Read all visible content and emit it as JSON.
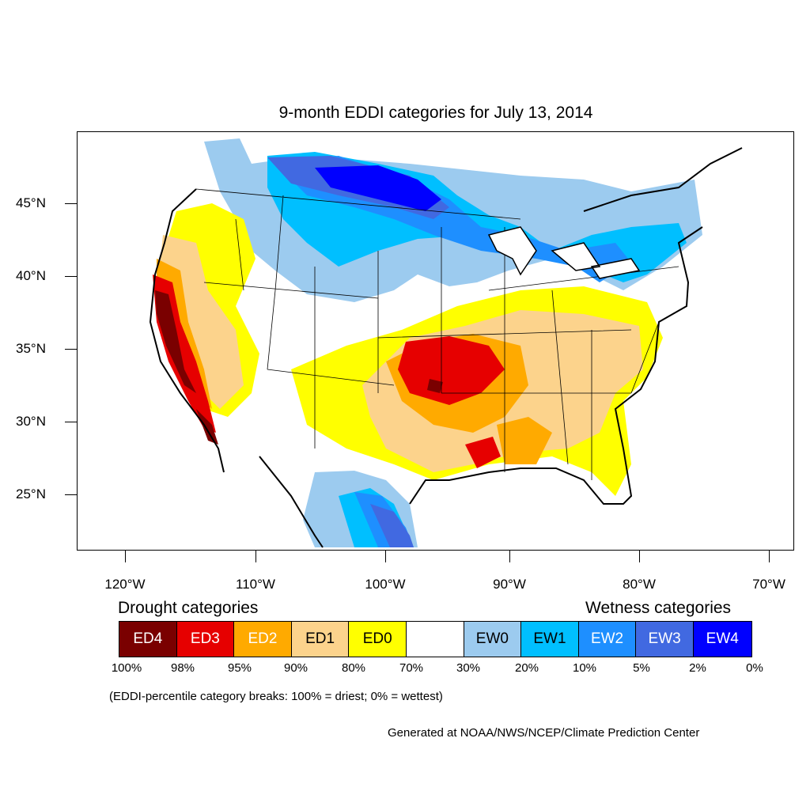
{
  "title": "9-month EDDI categories for July 13, 2014",
  "axes": {
    "y_labels": [
      "45°N",
      "40°N",
      "35°N",
      "30°N",
      "25°N"
    ],
    "x_labels": [
      "120°W",
      "110°W",
      "100°W",
      "90°W",
      "80°W",
      "70°W"
    ]
  },
  "legend": {
    "drought_title": "Drought categories",
    "wetness_title": "Wetness categories",
    "categories": [
      {
        "label": "ED4",
        "color": "#7a0000",
        "text_color": "#ffffff"
      },
      {
        "label": "ED3",
        "color": "#e60000",
        "text_color": "#ffffff"
      },
      {
        "label": "ED2",
        "color": "#ffaa00",
        "text_color": "#ffffff"
      },
      {
        "label": "ED1",
        "color": "#fcd38c",
        "text_color": "#000000"
      },
      {
        "label": "ED0",
        "color": "#ffff00",
        "text_color": "#000000"
      },
      {
        "label": "",
        "color": "#ffffff",
        "text_color": "#000000"
      },
      {
        "label": "EW0",
        "color": "#9ccbef",
        "text_color": "#000000"
      },
      {
        "label": "EW1",
        "color": "#00bfff",
        "text_color": "#000000"
      },
      {
        "label": "EW2",
        "color": "#1e8fff",
        "text_color": "#ffffff"
      },
      {
        "label": "EW3",
        "color": "#4169e1",
        "text_color": "#ffffff"
      },
      {
        "label": "EW4",
        "color": "#0000ff",
        "text_color": "#ffffff"
      }
    ],
    "breaks": [
      "100%",
      "98%",
      "95%",
      "90%",
      "80%",
      "70%",
      "30%",
      "20%",
      "10%",
      "5%",
      "2%",
      "0%"
    ]
  },
  "note": "(EDDI-percentile category breaks: 100% = driest; 0% = wettest)",
  "credit": "Generated at NOAA/NWS/NCEP/Climate Prediction Center"
}
